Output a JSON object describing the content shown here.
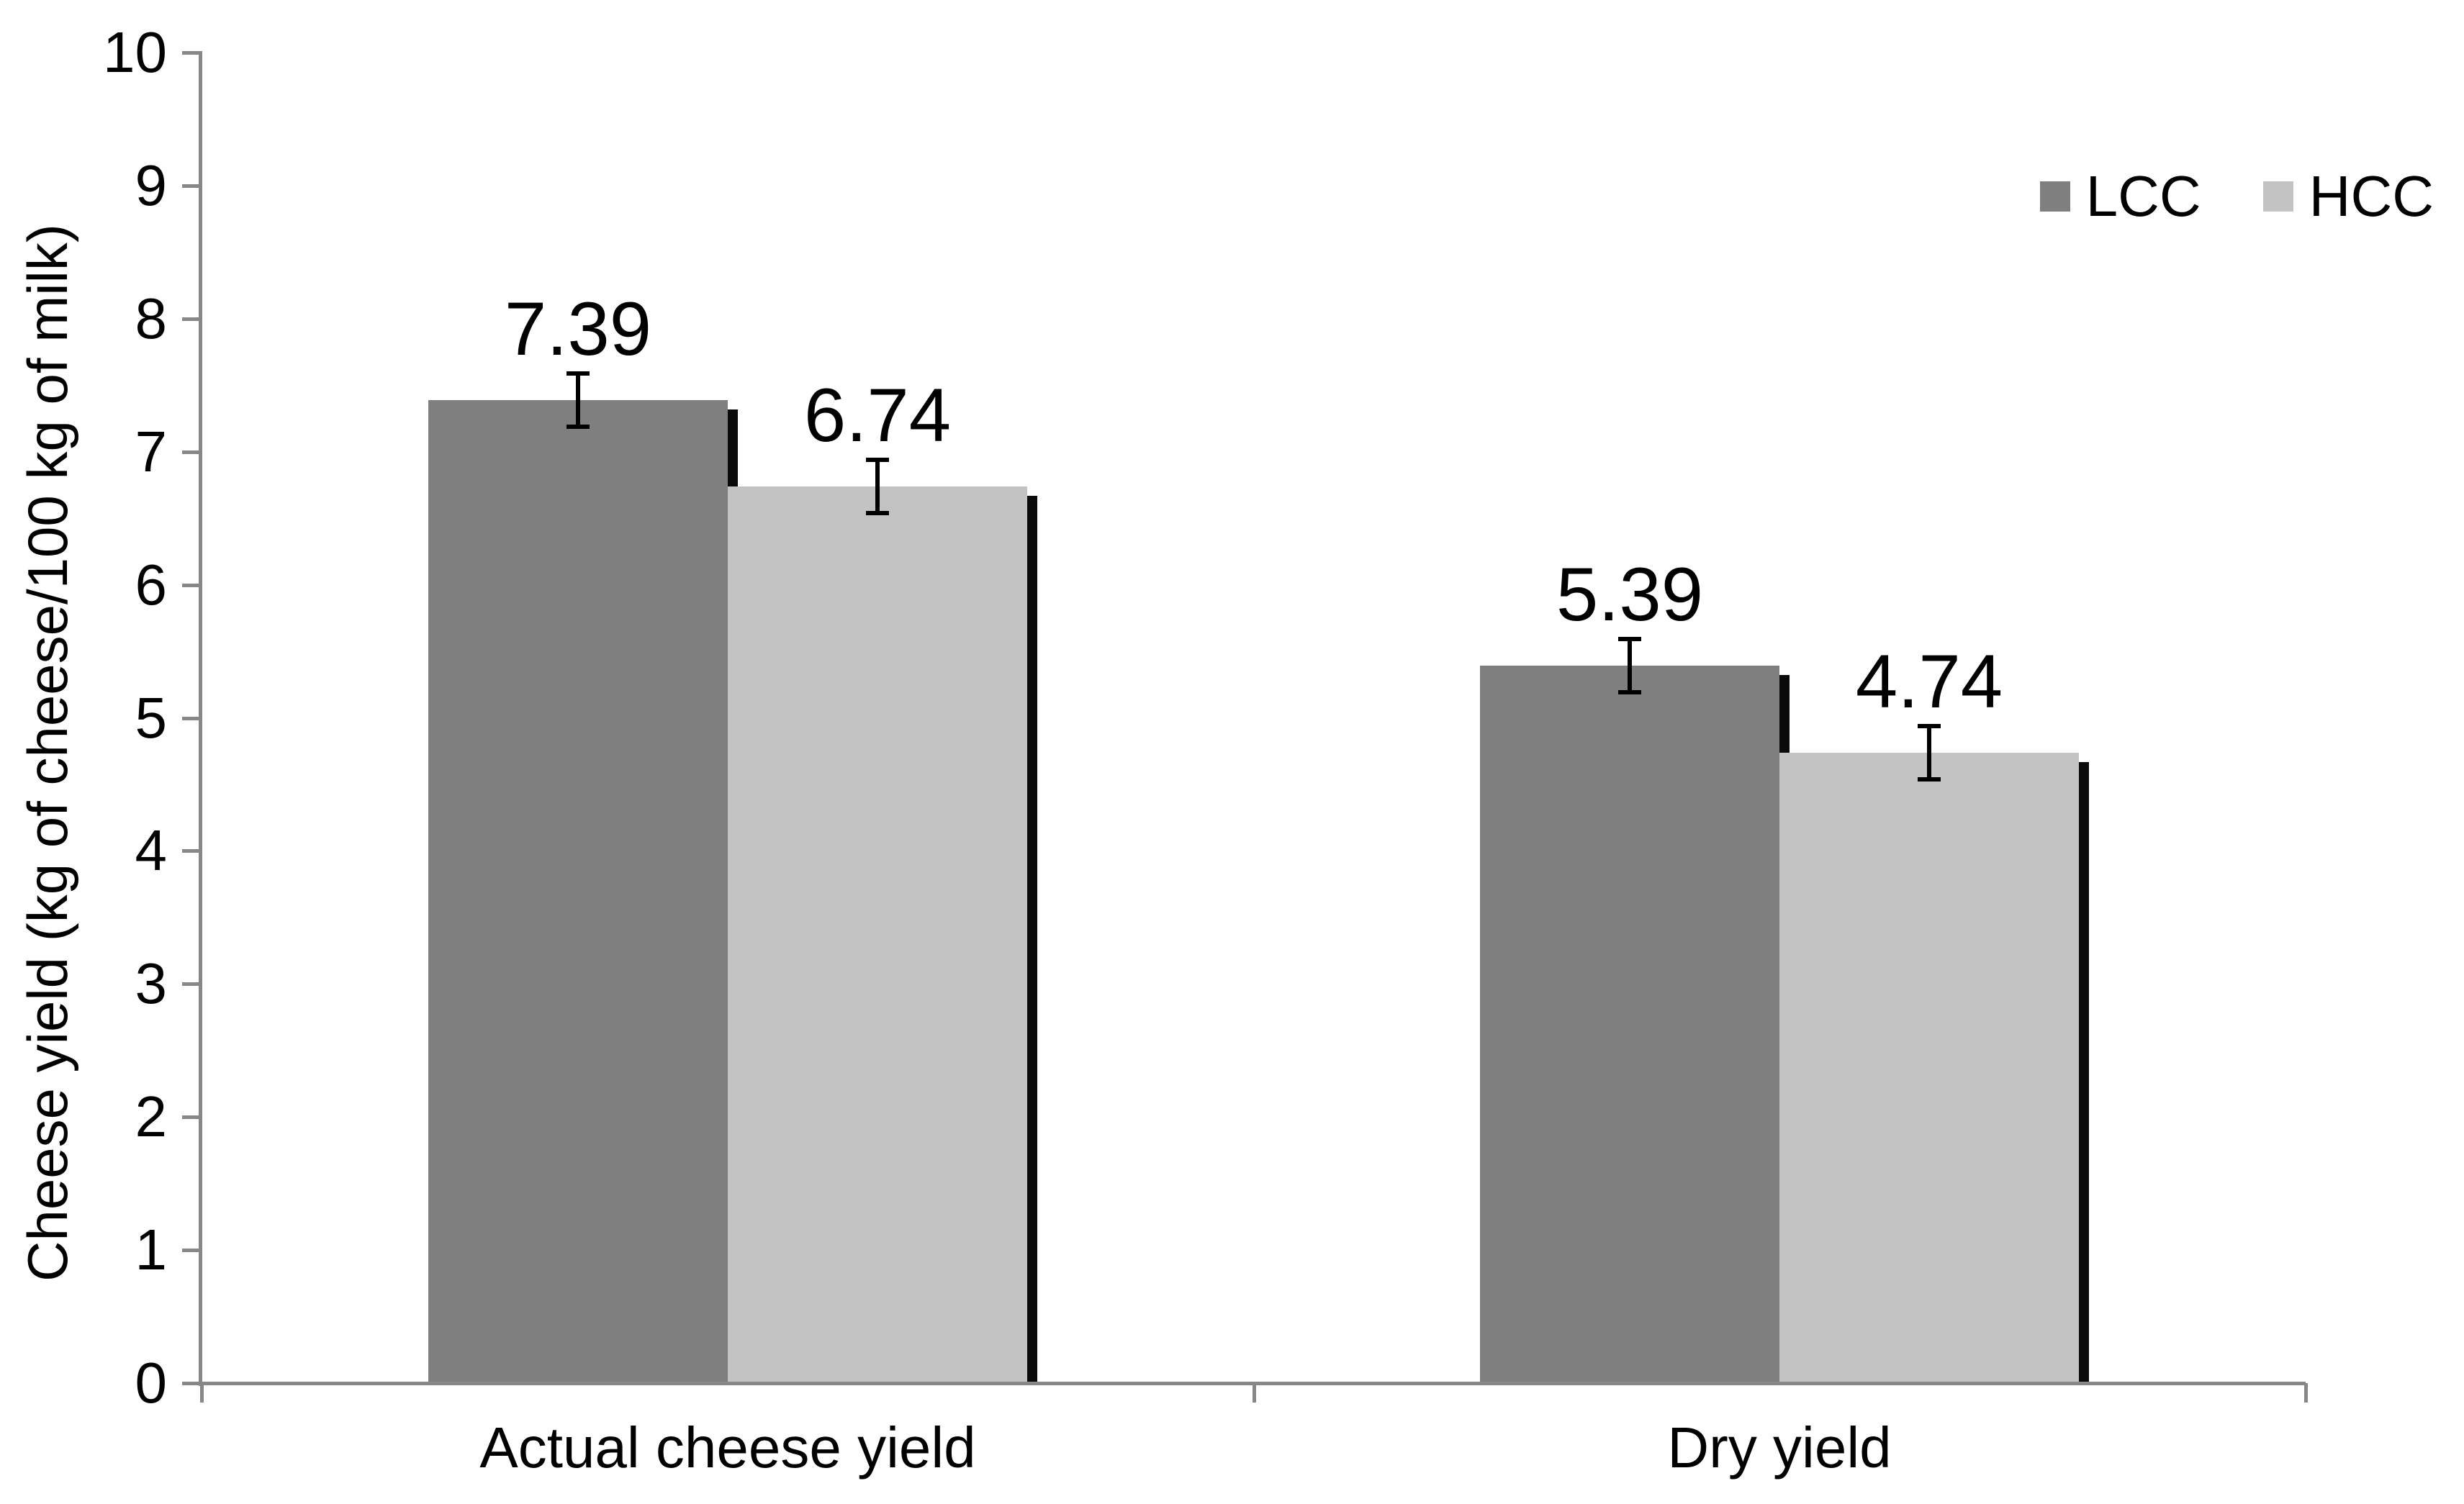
{
  "chart_data": {
    "type": "bar",
    "title": "",
    "ylabel": "Cheese yield (kg of cheese/100 kg of milk)",
    "xlabel": "",
    "categories": [
      "Actual cheese yield",
      "Dry yield"
    ],
    "series": [
      {
        "name": "LCC",
        "color": "#7f7f7f",
        "values": [
          7.39,
          5.39
        ],
        "errors": [
          0.2,
          0.2
        ],
        "labels": [
          "7.39",
          "5.39"
        ]
      },
      {
        "name": "HCC",
        "color": "#c3c3c3",
        "values": [
          6.74,
          4.74
        ],
        "errors": [
          0.2,
          0.2
        ],
        "labels": [
          "6.74",
          "4.74"
        ]
      }
    ],
    "ylim": [
      0,
      10
    ],
    "yticks": [
      0,
      1,
      2,
      3,
      4,
      5,
      6,
      7,
      8,
      9,
      10
    ],
    "ytick_labels": [
      "0",
      "1",
      "2",
      "3",
      "4",
      "5",
      "6",
      "7",
      "8",
      "9",
      "10"
    ],
    "grid": false,
    "legend": {
      "position": "top-right",
      "entries": [
        "LCC",
        "HCC"
      ]
    },
    "style": {
      "axis_color": "#878787",
      "text_color": "#000000",
      "shadow_color": "#0a0a0a",
      "error_bar_color": "#000000",
      "background": "#ffffff",
      "bar_shadow": true,
      "error_caps": true
    }
  }
}
